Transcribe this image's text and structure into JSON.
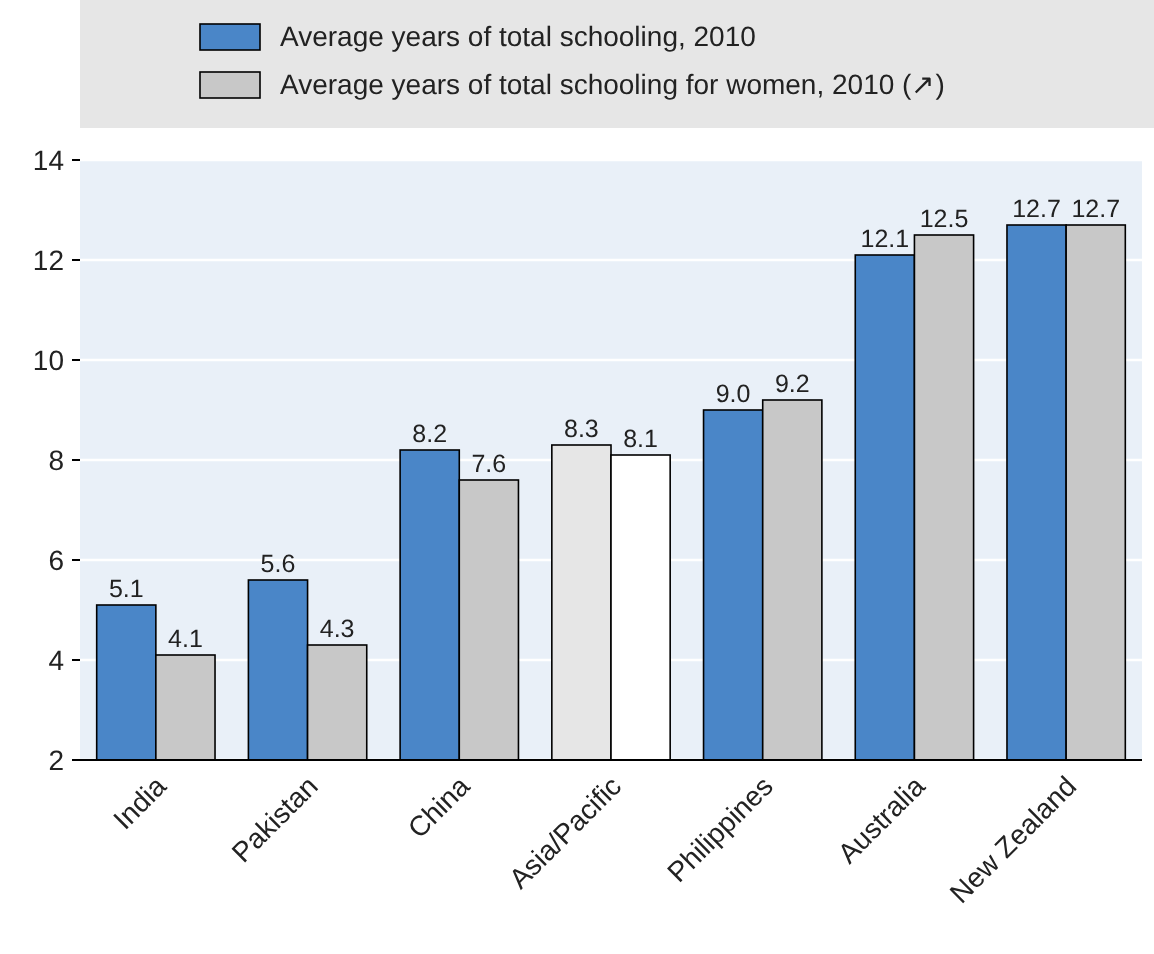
{
  "chart_data": {
    "type": "bar",
    "categories": [
      "India",
      "Pakistan",
      "China",
      "Asia/Pacific",
      "Philippines",
      "Australia",
      "New Zealand"
    ],
    "series": [
      {
        "name": "Average years of total schooling, 2010",
        "color": "#4a86c8",
        "colors": [
          "#4a86c8",
          "#4a86c8",
          "#4a86c8",
          "#e6e6e6",
          "#4a86c8",
          "#4a86c8",
          "#4a86c8"
        ],
        "values": [
          5.1,
          5.6,
          8.2,
          8.3,
          9.0,
          12.1,
          12.7
        ],
        "value_labels": [
          "5.1",
          "5.6",
          "8.2",
          "8.3",
          "9.0",
          "12.1",
          "12.7"
        ]
      },
      {
        "name": "Average years of total schooling for women, 2010 (↗)",
        "color": "#c8c8c8",
        "colors": [
          "#c8c8c8",
          "#c8c8c8",
          "#c8c8c8",
          "#ffffff",
          "#c8c8c8",
          "#c8c8c8",
          "#c8c8c8"
        ],
        "values": [
          4.1,
          4.3,
          7.6,
          8.1,
          9.2,
          12.5,
          12.7
        ],
        "value_labels": [
          "4.1",
          "4.3",
          "7.6",
          "8.1",
          "9.2",
          "12.5",
          "12.7"
        ]
      }
    ],
    "ylim": [
      2,
      14
    ],
    "yticks": [
      2,
      4,
      6,
      8,
      10,
      12,
      14
    ],
    "grid": "y",
    "legend": "top"
  }
}
